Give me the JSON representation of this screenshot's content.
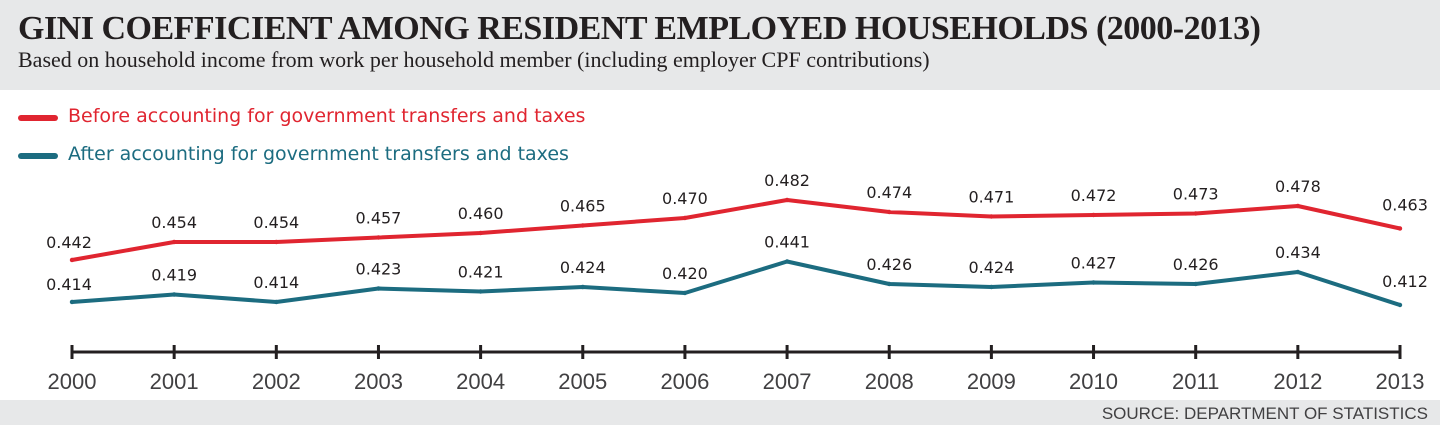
{
  "header": {
    "title": "GINI COEFFICIENT AMONG RESIDENT EMPLOYED HOUSEHOLDS (2000-2013)",
    "subtitle": "Based on household income from work per household member (including employer CPF contributions)"
  },
  "footer": {
    "source": "SOURCE: DEPARTMENT OF STATISTICS"
  },
  "colors": {
    "before": "#e02530",
    "after": "#1c6c80",
    "axis": "#231f20",
    "band": "#e7e8e9"
  },
  "chart_data": {
    "type": "line",
    "title": "GINI COEFFICIENT AMONG RESIDENT EMPLOYED HOUSEHOLDS (2000-2013)",
    "subtitle": "Based on household income from work per household member (including employer CPF contributions)",
    "categories": [
      "2000",
      "2001",
      "2002",
      "2003",
      "2004",
      "2005",
      "2006",
      "2007",
      "2008",
      "2009",
      "2010",
      "2011",
      "2012",
      "2013"
    ],
    "series": [
      {
        "name": "Before accounting for government transfers and taxes",
        "color": "#e02530",
        "values": [
          0.442,
          0.454,
          0.454,
          0.457,
          0.46,
          0.465,
          0.47,
          0.482,
          0.474,
          0.471,
          0.472,
          0.473,
          0.478,
          0.463
        ],
        "labels": [
          "0.442",
          "0.454",
          "0.454",
          "0.457",
          "0.460",
          "0.465",
          "0.470",
          "0.482",
          "0.474",
          "0.471",
          "0.472",
          "0.473",
          "0.478",
          "0.463"
        ]
      },
      {
        "name": "After accounting for government transfers and taxes",
        "color": "#1c6c80",
        "values": [
          0.414,
          0.419,
          0.414,
          0.423,
          0.421,
          0.424,
          0.42,
          0.441,
          0.426,
          0.424,
          0.427,
          0.426,
          0.434,
          0.412
        ],
        "labels": [
          "0.414",
          "0.419",
          "0.414",
          "0.423",
          "0.421",
          "0.424",
          "0.420",
          "0.441",
          "0.426",
          "0.424",
          "0.427",
          "0.426",
          "0.434",
          "0.412"
        ]
      }
    ],
    "xlabel": "",
    "ylabel": "",
    "grid": false,
    "legend": "top-left",
    "source": "SOURCE: DEPARTMENT OF STATISTICS"
  }
}
